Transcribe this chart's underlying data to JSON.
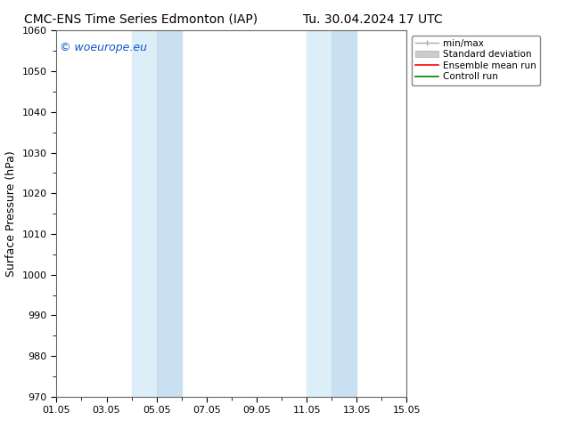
{
  "title_left": "CMC-ENS Time Series Edmonton (IAP)",
  "title_right": "Tu. 30.04.2024 17 UTC",
  "ylabel": "Surface Pressure (hPa)",
  "ylim": [
    970,
    1060
  ],
  "yticks": [
    970,
    980,
    990,
    1000,
    1010,
    1020,
    1030,
    1040,
    1050,
    1060
  ],
  "xlim_start": 0,
  "xlim_end": 14,
  "xtick_labels": [
    "01.05",
    "03.05",
    "05.05",
    "07.05",
    "09.05",
    "11.05",
    "13.05",
    "15.05"
  ],
  "xtick_positions": [
    0,
    2,
    4,
    6,
    8,
    10,
    12,
    14
  ],
  "shaded_bands": [
    {
      "xmin": 3.0,
      "xmax": 4.0,
      "color": "#dceef8"
    },
    {
      "xmin": 4.0,
      "xmax": 5.0,
      "color": "#c8e0f0"
    },
    {
      "xmin": 10.0,
      "xmax": 11.0,
      "color": "#dceef8"
    },
    {
      "xmin": 11.0,
      "xmax": 12.0,
      "color": "#c8e0f0"
    }
  ],
  "band_color_light": "#dceef8",
  "band_color_dark": "#c5dff0",
  "watermark": "© woeurope.eu",
  "background_color": "#ffffff",
  "title_fontsize": 10,
  "axis_label_fontsize": 9,
  "tick_fontsize": 8,
  "legend_fontsize": 7.5,
  "watermark_fontsize": 9,
  "watermark_color": "#1155cc"
}
